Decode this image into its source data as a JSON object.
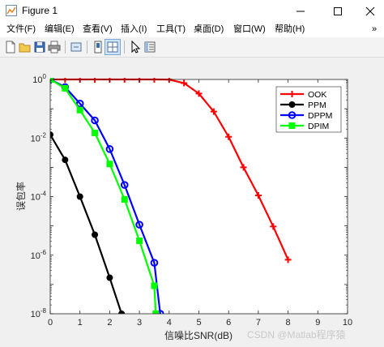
{
  "window": {
    "title": "Figure 1",
    "icon": "matlab-figure-icon"
  },
  "menu": {
    "items": [
      "文件(F)",
      "编辑(E)",
      "查看(V)",
      "插入(I)",
      "工具(T)",
      "桌面(D)",
      "窗口(W)",
      "帮助(H)"
    ],
    "overflow": "»"
  },
  "toolbar": {
    "icons": [
      "new-file-icon",
      "open-folder-icon",
      "save-icon",
      "print-icon",
      "link-icon",
      "dock-icon",
      "layout-icon",
      "pointer-icon",
      "property-editor-icon"
    ]
  },
  "watermark": "CSDN @Matlab程序猿",
  "chart_data": {
    "type": "line",
    "xlabel": "信噪比SNR(dB)",
    "ylabel": "误包率",
    "x_scale": "linear",
    "y_scale": "log",
    "xlim": [
      0,
      10
    ],
    "ylim": [
      1e-08,
      1
    ],
    "xticks": [
      "0",
      "1",
      "2",
      "3",
      "4",
      "5",
      "6",
      "7",
      "8",
      "9",
      "10"
    ],
    "yticks": [
      {
        "base": "10",
        "exp": "0",
        "value": 1
      },
      {
        "base": "10",
        "exp": "-2",
        "value": 0.01
      },
      {
        "base": "10",
        "exp": "-4",
        "value": 0.0001
      },
      {
        "base": "10",
        "exp": "-6",
        "value": 1e-06
      },
      {
        "base": "10",
        "exp": "-8",
        "value": 1e-08
      }
    ],
    "grid": false,
    "legend_position": "top-right",
    "series": [
      {
        "name": "OOK",
        "color": "#ff0000",
        "marker": "plus",
        "points": [
          [
            0,
            1
          ],
          [
            0.5,
            1
          ],
          [
            1,
            1
          ],
          [
            1.5,
            1
          ],
          [
            2,
            1
          ],
          [
            2.5,
            1
          ],
          [
            3,
            1
          ],
          [
            3.5,
            1
          ],
          [
            4,
            0.99
          ],
          [
            4.5,
            0.75
          ],
          [
            5,
            0.33
          ],
          [
            5.5,
            0.08
          ],
          [
            6,
            0.011
          ],
          [
            6.5,
            0.001
          ],
          [
            7,
            0.00011
          ],
          [
            7.5,
            9.5e-06
          ],
          [
            8,
            7e-07
          ]
        ]
      },
      {
        "name": "PPM",
        "color": "#000000",
        "marker": "circle-filled",
        "points": [
          [
            0,
            0.013
          ],
          [
            0.5,
            0.0018
          ],
          [
            1,
            0.0001
          ],
          [
            1.5,
            5e-06
          ],
          [
            2,
            1.7e-07
          ],
          [
            2.4,
            1e-08
          ]
        ]
      },
      {
        "name": "DPPM",
        "color": "#0000ff",
        "marker": "circle-open",
        "points": [
          [
            0,
            1
          ],
          [
            0.5,
            0.55
          ],
          [
            1,
            0.15
          ],
          [
            1.5,
            0.04
          ],
          [
            2,
            0.0042
          ],
          [
            2.5,
            0.00025
          ],
          [
            3,
            1.1e-05
          ],
          [
            3.5,
            5.5e-07
          ],
          [
            3.7,
            1e-08
          ]
        ]
      },
      {
        "name": "DPIM",
        "color": "#00ff00",
        "marker": "square-filled",
        "points": [
          [
            0,
            1
          ],
          [
            0.5,
            0.5
          ],
          [
            1,
            0.09
          ],
          [
            1.5,
            0.015
          ],
          [
            2,
            0.0013
          ],
          [
            2.5,
            8e-05
          ],
          [
            3,
            3.1e-06
          ],
          [
            3.5,
            9e-08
          ],
          [
            3.55,
            1e-08
          ]
        ]
      }
    ]
  }
}
